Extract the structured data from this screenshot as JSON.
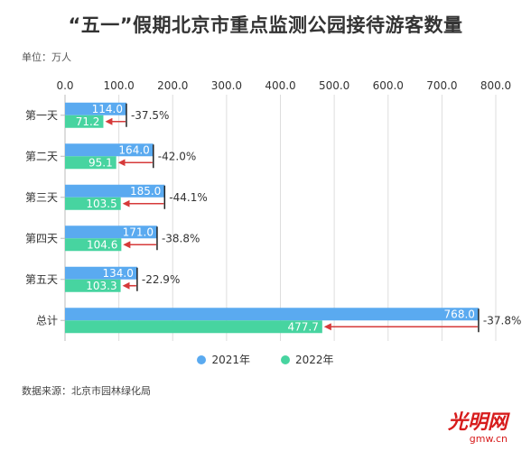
{
  "header": {
    "title": "“五一”假期北京市重点监测公园接待游客数量",
    "unit_label": "单位：万人"
  },
  "footer": {
    "source": "数据来源：北京市园林绿化局",
    "logo_text": "光明网",
    "logo_sub": "gmw.cn"
  },
  "colors": {
    "series_2021": "#5aaaf0",
    "series_2022": "#47d4a0",
    "arrow": "#d63a3a",
    "grid": "#dddddd"
  },
  "chart_data": {
    "type": "bar",
    "orientation": "horizontal",
    "categories": [
      "第一天",
      "第二天",
      "第三天",
      "第四天",
      "第五天",
      "总计"
    ],
    "series": [
      {
        "name": "2021年",
        "values": [
          114.0,
          164.0,
          185.0,
          171.0,
          134.0,
          768.0
        ]
      },
      {
        "name": "2022年",
        "values": [
          71.2,
          95.1,
          103.5,
          104.6,
          103.3,
          477.7
        ]
      }
    ],
    "value_labels": [
      [
        "114.0",
        "164.0",
        "185.0",
        "171.0",
        "134.0",
        "768.0"
      ],
      [
        "71.2",
        "95.1",
        "103.5",
        "104.6",
        "103.3",
        "477.7"
      ]
    ],
    "change_labels": [
      "-37.5%",
      "-42.0%",
      "-44.1%",
      "-38.8%",
      "-22.9%",
      "-37.8%"
    ],
    "x_ticks": [
      "0.0",
      "100.0",
      "200.0",
      "300.0",
      "400.0",
      "500.0",
      "600.0",
      "700.0",
      "800.0"
    ],
    "xlim": [
      0,
      800
    ],
    "grid": true,
    "legend_position": "bottom"
  }
}
